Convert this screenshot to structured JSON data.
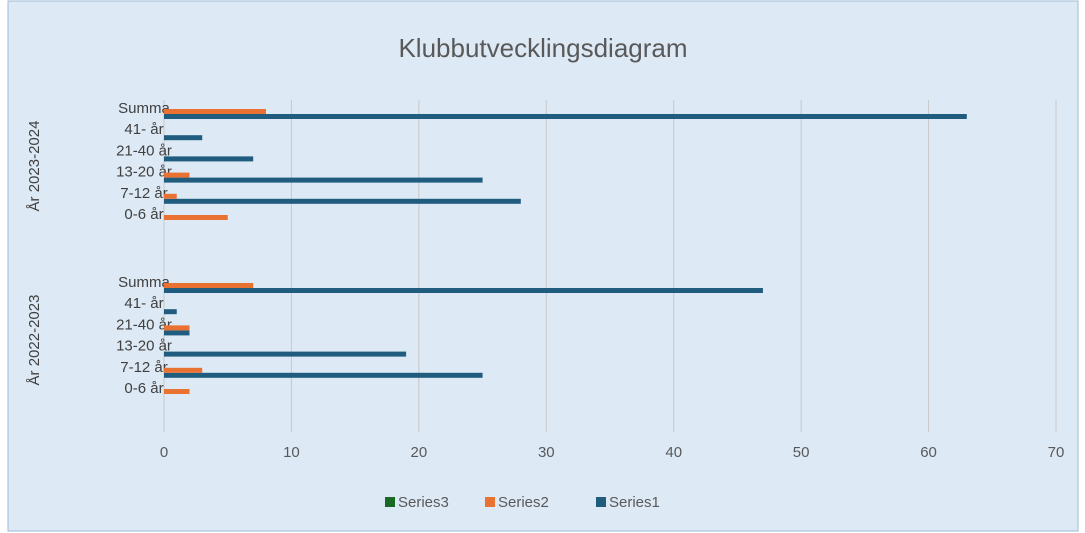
{
  "chart_data": {
    "type": "bar",
    "orientation": "horizontal",
    "title": "Klubbutvecklingsdiagram",
    "category_groups": [
      {
        "name": "År 2022-2023",
        "categories": [
          "0-6 år",
          "7-12 år",
          "13-20 år",
          "21-40 år",
          "41- år",
          "Summa"
        ]
      },
      {
        "name": "År 2023-2024",
        "categories": [
          "0-6 år",
          "7-12 år",
          "13-20 år",
          "21-40 år",
          "41- år",
          "Summa"
        ]
      }
    ],
    "series": [
      {
        "name": "Series1",
        "color": "#1f5c7e",
        "values": [
          0,
          25,
          19,
          2,
          1,
          47,
          0,
          28,
          25,
          7,
          3,
          63
        ]
      },
      {
        "name": "Series2",
        "color": "#e97132",
        "values": [
          2,
          3,
          0,
          2,
          0,
          7,
          5,
          1,
          2,
          0,
          0,
          8
        ]
      },
      {
        "name": "Series3",
        "color": "#196b24",
        "values": [
          0,
          0,
          0,
          0,
          0,
          0,
          0,
          0,
          0,
          0,
          0,
          0
        ]
      }
    ],
    "xlim": [
      0,
      70
    ],
    "xticks": [
      0,
      10,
      20,
      30,
      40,
      50,
      60,
      70
    ],
    "grid": true,
    "legend": "bottom"
  }
}
